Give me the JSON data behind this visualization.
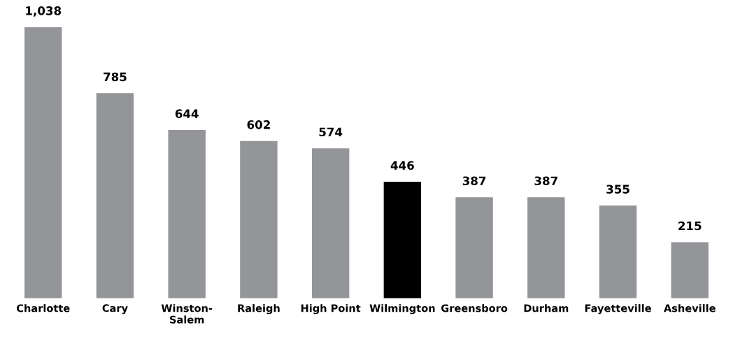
{
  "chart_data": {
    "type": "bar",
    "categories": [
      "Charlotte",
      "Cary",
      "Winston-\nSalem",
      "Raleigh",
      "High Point",
      "Wilmington",
      "Greensboro",
      "Durham",
      "Fayetteville",
      "Asheville"
    ],
    "values": [
      1038,
      785,
      644,
      602,
      574,
      446,
      387,
      387,
      355,
      215
    ],
    "colors": [
      "#939598",
      "#939598",
      "#939598",
      "#939598",
      "#939598",
      "#000000",
      "#939598",
      "#939598",
      "#939598",
      "#939598"
    ],
    "value_labels": [
      "1,038",
      "785",
      "644",
      "602",
      "574",
      "446",
      "387",
      "387",
      "355",
      "215"
    ],
    "grid": false,
    "legend": false
  }
}
